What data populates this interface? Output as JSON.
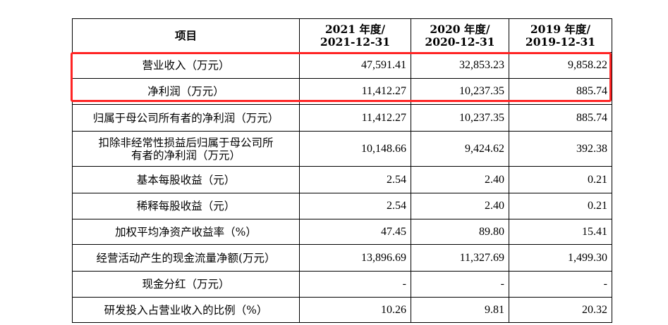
{
  "header": {
    "item": "项目",
    "col1_line1": "2021 年度/",
    "col1_line2": "2021-12-31",
    "col2_line1": "2020 年度/",
    "col2_line2": "2020-12-31",
    "col3_line1": "2019 年度/",
    "col3_line2": "2019-12-31"
  },
  "rows": [
    {
      "label": "营业收入（万元）",
      "v2021": "47,591.41",
      "v2020": "32,853.23",
      "v2019": "9,858.22"
    },
    {
      "label": "净利润（万元）",
      "v2021": "11,412.27",
      "v2020": "10,237.35",
      "v2019": "885.74"
    },
    {
      "label": "归属于母公司所有者的净利润（万元）",
      "v2021": "11,412.27",
      "v2020": "10,237.35",
      "v2019": "885.74"
    },
    {
      "label_line1": "扣除非经常性损益后归属于母公司所",
      "label_line2": "有者的净利润（万元）",
      "v2021": "10,148.66",
      "v2020": "9,424.62",
      "v2019": "392.38"
    },
    {
      "label": "基本每股收益（元）",
      "v2021": "2.54",
      "v2020": "2.40",
      "v2019": "0.21"
    },
    {
      "label": "稀释每股收益（元）",
      "v2021": "2.54",
      "v2020": "2.40",
      "v2019": "0.21"
    },
    {
      "label": "加权平均净资产收益率（%）",
      "v2021": "47.45",
      "v2020": "89.80",
      "v2019": "15.41"
    },
    {
      "label": "经营活动产生的现金流量净额(万元）",
      "v2021": "13,896.69",
      "v2020": "11,327.69",
      "v2019": "1,499.30"
    },
    {
      "label": "现金分红（万元）",
      "v2021": "-",
      "v2020": "-",
      "v2019": "-"
    },
    {
      "label": "研发投入占营业收入的比例（%）",
      "v2021": "10.26",
      "v2020": "9.81",
      "v2019": "20.32"
    }
  ],
  "colors": {
    "highlight_border": "#ff2424",
    "grid": "#000000"
  }
}
